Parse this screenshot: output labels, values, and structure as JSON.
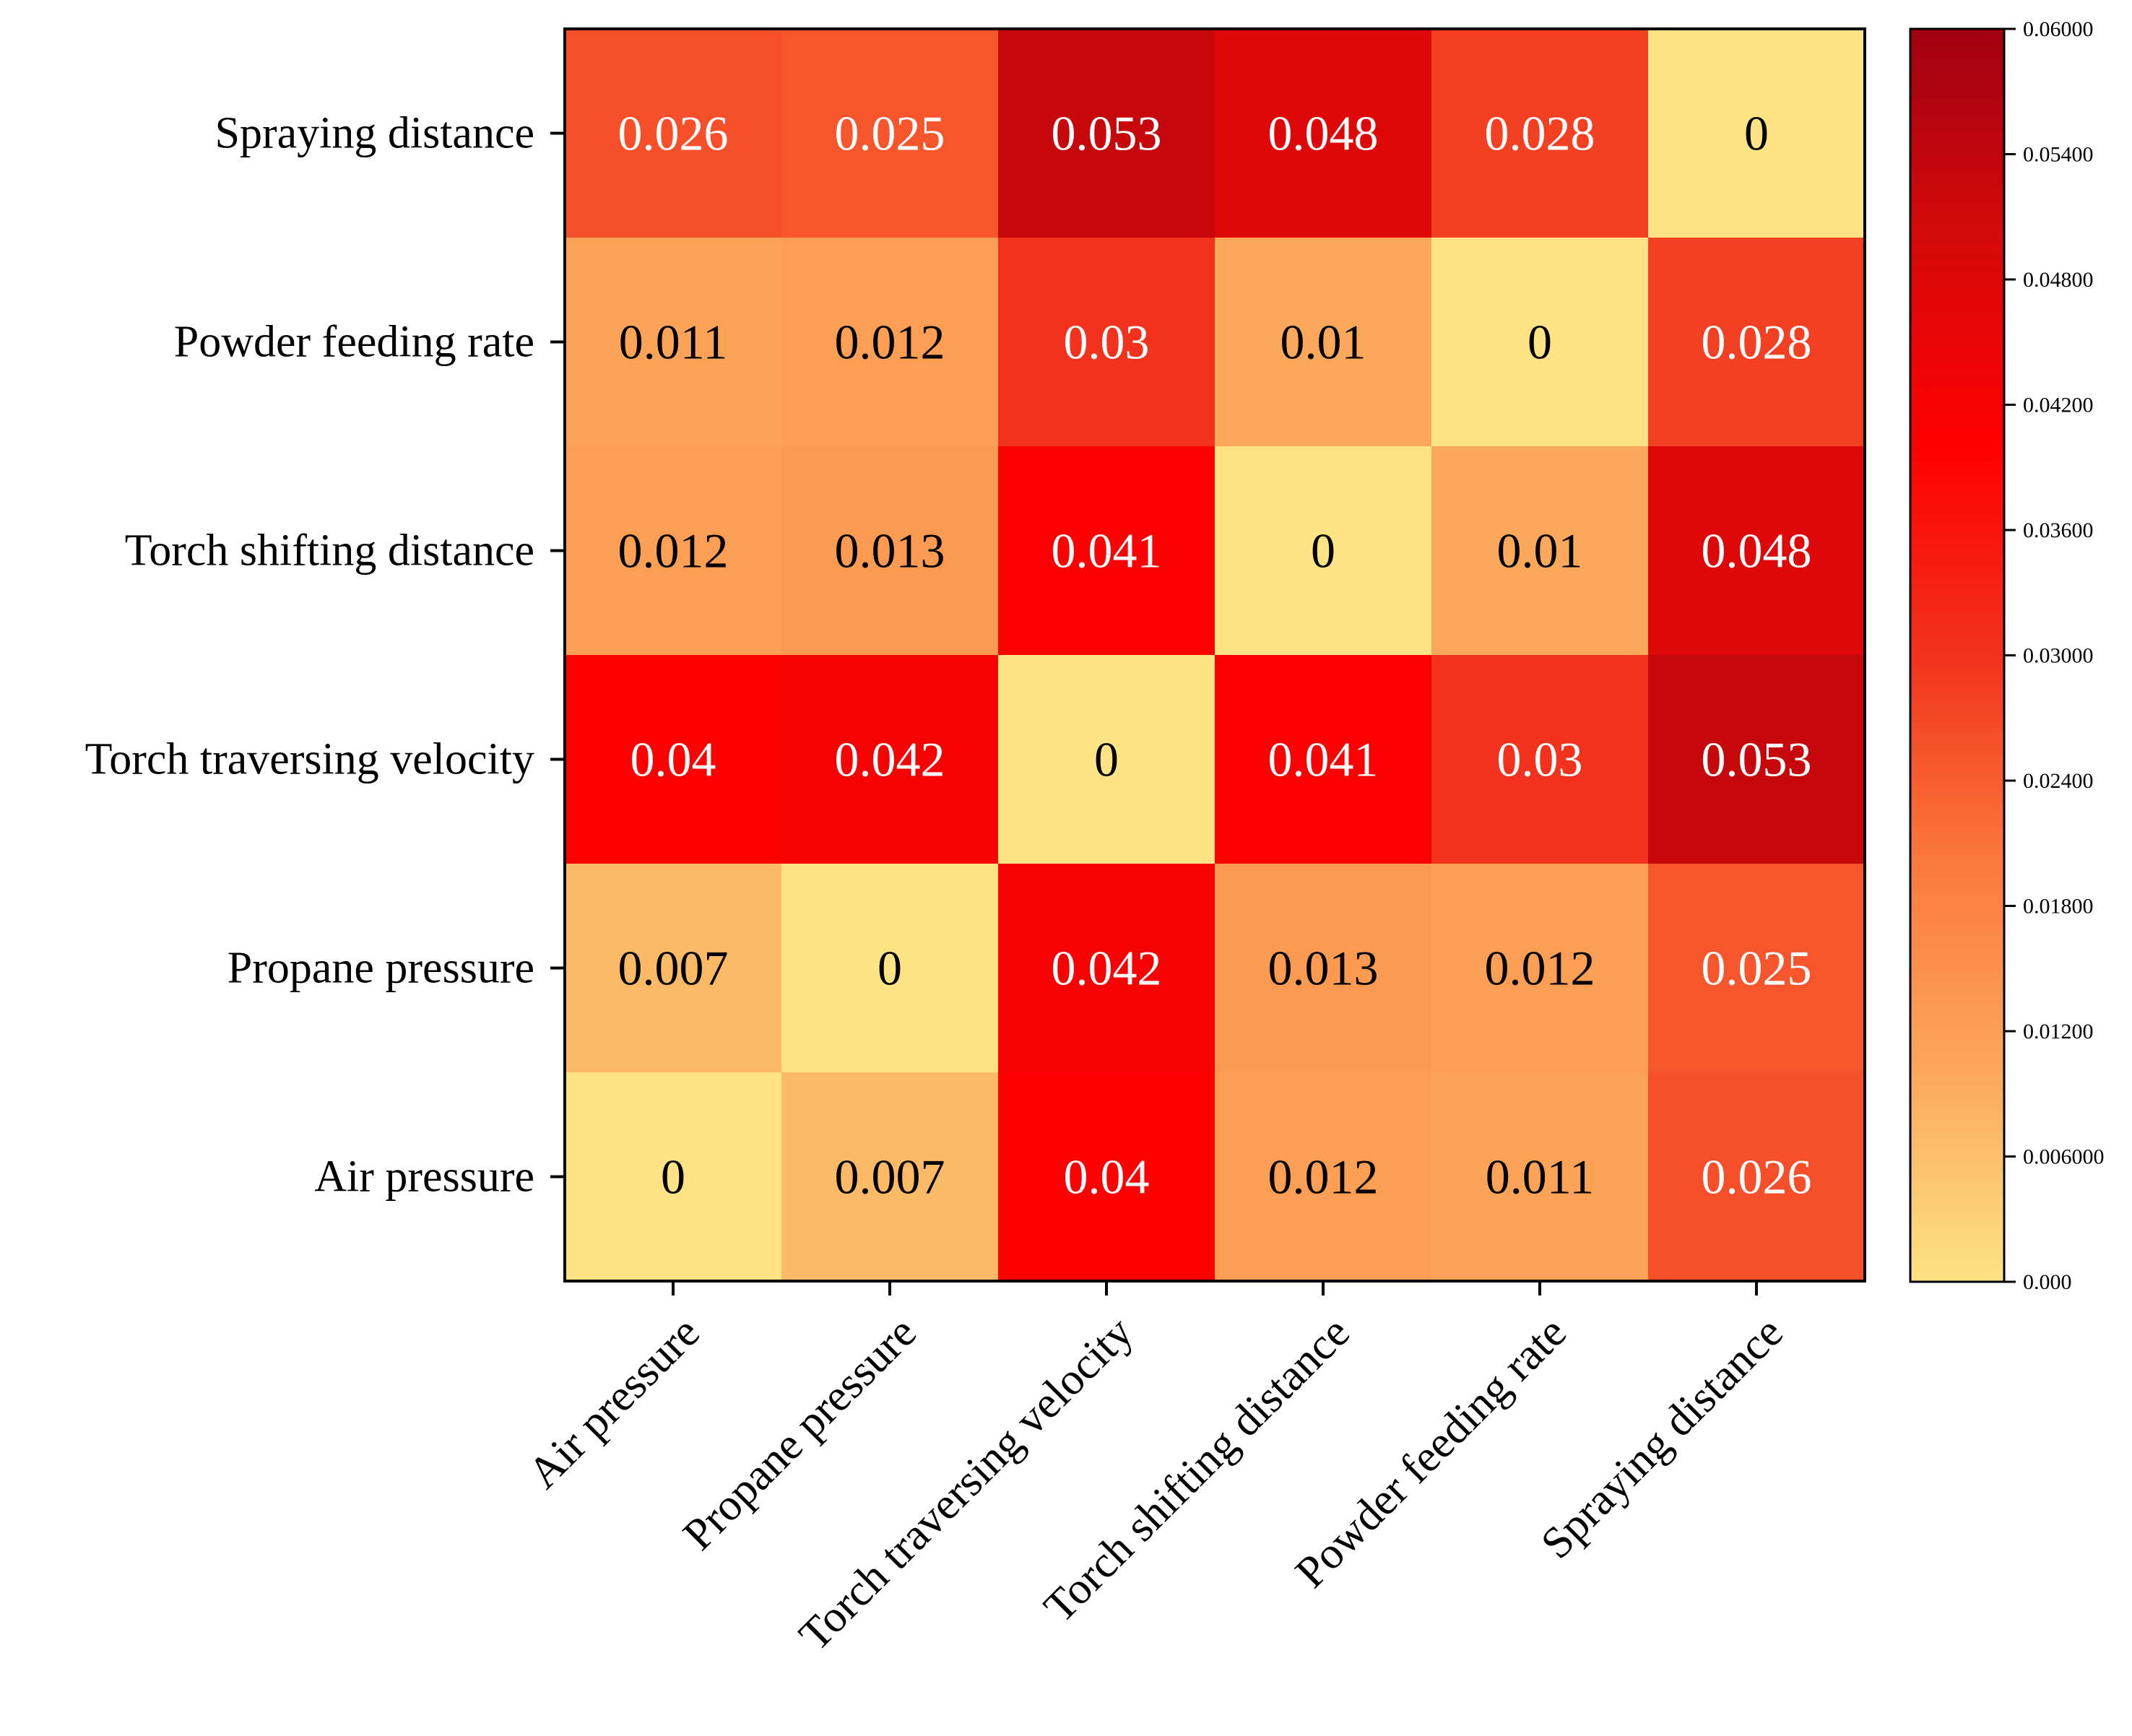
{
  "chart_data": {
    "type": "heatmap",
    "x_categories": [
      "Air pressure",
      "Propane pressure",
      "Torch traversing velocity",
      "Torch shifting distance",
      "Powder feeding rate",
      "Spraying distance"
    ],
    "y_categories_top_to_bottom": [
      "Spraying distance",
      "Powder feeding rate",
      "Torch shifting distance",
      "Torch traversing velocity",
      "Propane pressure",
      "Air pressure"
    ],
    "values": [
      [
        "0.026",
        "0.025",
        "0.053",
        "0.048",
        "0.028",
        "0"
      ],
      [
        "0.011",
        "0.012",
        "0.03",
        "0.01",
        "0",
        "0.028"
      ],
      [
        "0.012",
        "0.013",
        "0.041",
        "0",
        "0.01",
        "0.048"
      ],
      [
        "0.04",
        "0.042",
        "0",
        "0.041",
        "0.03",
        "0.053"
      ],
      [
        "0.007",
        "0",
        "0.042",
        "0.013",
        "0.012",
        "0.025"
      ],
      [
        "0",
        "0.007",
        "0.04",
        "0.012",
        "0.011",
        "0.026"
      ]
    ],
    "colorbar": {
      "min": 0,
      "max": 0.06,
      "tick_values": [
        0,
        0.006,
        0.012,
        0.018,
        0.024,
        0.03,
        0.036,
        0.042,
        0.048,
        0.054,
        0.06
      ],
      "tick_labels": [
        "0.000",
        "0.006000",
        "0.01200",
        "0.01800",
        "0.02400",
        "0.03000",
        "0.03600",
        "0.04200",
        "0.04800",
        "0.05400",
        "0.06000"
      ]
    },
    "colormap": [
      "#fde383",
      "#fca85a",
      "#fb7a3c",
      "#f2321c",
      "#ff0000",
      "#d60a0a",
      "#a10012"
    ],
    "text_color_threshold": 0.02,
    "text_colors": {
      "dark": "#000000",
      "light": "#ffffff"
    },
    "title": "",
    "xlabel": "",
    "ylabel": ""
  }
}
